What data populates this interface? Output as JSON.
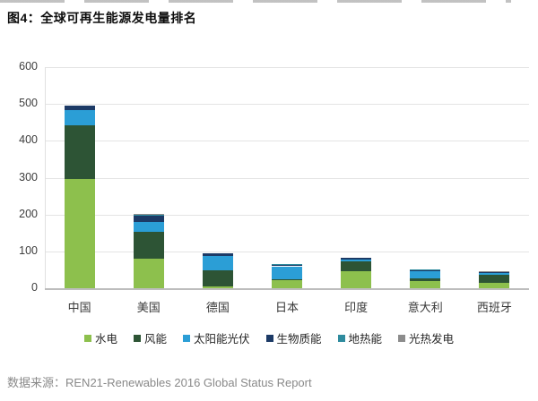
{
  "page": {
    "title": "图4：全球可再生能源发电量排名",
    "source_note": "数据来源：REN21-Renewables 2016 Global Status Report"
  },
  "chart_data": {
    "type": "bar",
    "stacked": true,
    "title": "图4：全球可再生能源发电量排名",
    "categories": [
      "中国",
      "美国",
      "德国",
      "日本",
      "印度",
      "意大利",
      "西班牙"
    ],
    "series": [
      {
        "name": "水电",
        "color": "#8dc04d",
        "values": [
          296,
          80,
          6,
          22,
          47,
          18.5,
          14
        ]
      },
      {
        "name": "风能",
        "color": "#2d5435",
        "values": [
          145,
          74,
          43,
          3,
          25,
          9,
          23
        ]
      },
      {
        "name": "太阳能光伏",
        "color": "#2b9ed6",
        "values": [
          43.5,
          25.5,
          38,
          34.5,
          5,
          19,
          5.5
        ]
      },
      {
        "name": "生物质能",
        "color": "#1c3a66",
        "values": [
          10,
          16.5,
          8,
          5,
          5.5,
          4,
          1
        ]
      },
      {
        "name": "地热能",
        "color": "#2e8b9e",
        "values": [
          0,
          3.6,
          0,
          0.5,
          0,
          1,
          0
        ]
      },
      {
        "name": "光热发电",
        "color": "#8c8c8c",
        "values": [
          0,
          1.7,
          0,
          0,
          0,
          0,
          2.3
        ]
      }
    ],
    "totals_approx": [
      494.5,
      201.3,
      95,
      65,
      82.5,
      51.5,
      45.8
    ],
    "ylim": [
      0,
      600
    ],
    "yticks": [
      0,
      100,
      200,
      300,
      400,
      500,
      600
    ],
    "grid": "horizontal",
    "legend_position": "bottom"
  }
}
